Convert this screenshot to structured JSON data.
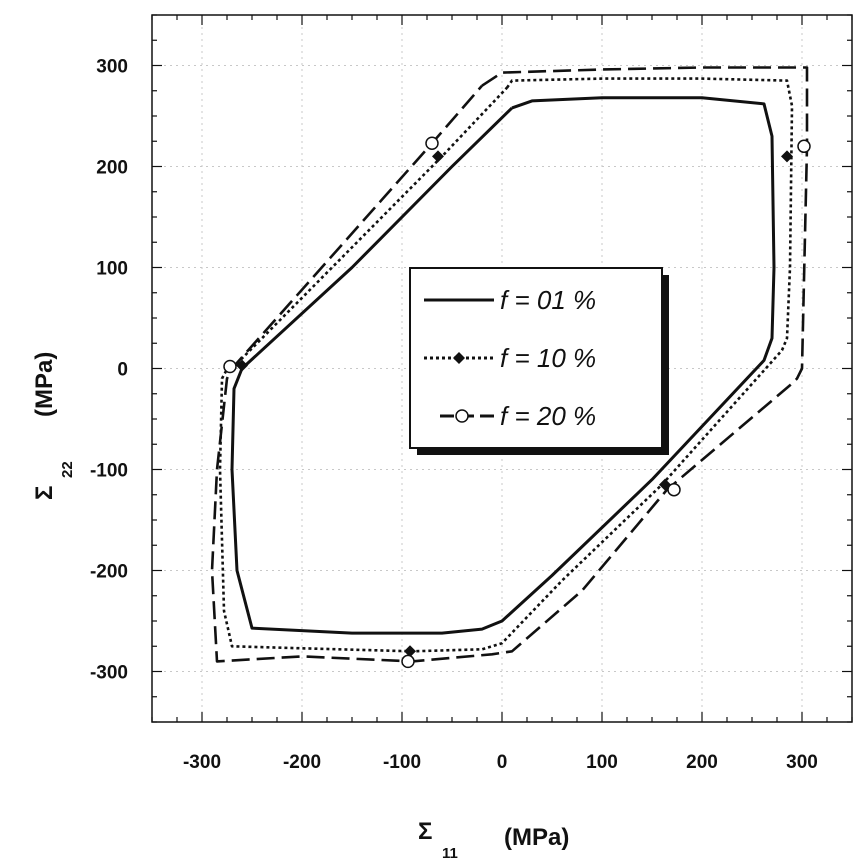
{
  "chart_data": {
    "type": "line",
    "xlabel": {
      "symbol": "Σ",
      "subscript": "11",
      "unit": "(MPa)"
    },
    "ylabel": {
      "symbol": "Σ",
      "subscript": "22",
      "unit": "(MPa)"
    },
    "xlim": [
      -350,
      350
    ],
    "ylim": [
      -350,
      350
    ],
    "xticks": [
      -300,
      -200,
      -100,
      0,
      100,
      200,
      300
    ],
    "yticks": [
      -300,
      -200,
      -100,
      0,
      100,
      200,
      300
    ],
    "grid": true,
    "legend_position": "center-right",
    "series": [
      {
        "name": "f = 01 %",
        "style": "solid",
        "marker": "none",
        "color": "#111111",
        "x": [
          10,
          30,
          100,
          200,
          262,
          270,
          272,
          270,
          262,
          150,
          50,
          0,
          -20,
          -60,
          -150,
          -250,
          -265,
          -270,
          -268,
          -260,
          -150,
          -50,
          10
        ],
        "y": [
          258,
          265,
          268,
          268,
          262,
          230,
          100,
          30,
          8,
          -110,
          -205,
          -250,
          -258,
          -262,
          -262,
          -257,
          -200,
          -100,
          -20,
          0,
          100,
          200,
          258
        ]
      },
      {
        "name": "f = 10 %",
        "style": "dotted",
        "marker": "diamond",
        "color": "#111111",
        "x": [
          5,
          10,
          100,
          200,
          285,
          290,
          288,
          285,
          280,
          160,
          60,
          0,
          -20,
          -90,
          -200,
          -270,
          -278,
          -282,
          -280,
          -272,
          -265,
          -60,
          5
        ],
        "y": [
          278,
          285,
          287,
          287,
          285,
          260,
          100,
          30,
          18,
          -115,
          -210,
          -272,
          -278,
          -280,
          -277,
          -275,
          -240,
          -100,
          -10,
          5,
          5,
          210,
          278
        ],
        "markers": [
          [
            -64,
            210
          ],
          [
            285,
            210
          ],
          [
            -260,
            3
          ],
          [
            163,
            -115
          ],
          [
            -92,
            -280
          ]
        ]
      },
      {
        "name": "f = 20 %",
        "style": "dashed",
        "marker": "circle",
        "color": "#111111",
        "x": [
          -20,
          0,
          100,
          200,
          305,
          305,
          300,
          295,
          290,
          165,
          80,
          10,
          -10,
          -90,
          -200,
          -285,
          -290,
          -285,
          -275,
          -270,
          -70,
          -20
        ],
        "y": [
          280,
          293,
          296,
          298,
          298,
          220,
          0,
          -10,
          -15,
          -120,
          -220,
          -280,
          -283,
          -290,
          -285,
          -290,
          -200,
          -100,
          -10,
          0,
          223,
          280
        ],
        "markers": [
          [
            -70,
            223
          ],
          [
            302,
            220
          ],
          [
            -272,
            2
          ],
          [
            172,
            -120
          ],
          [
            -94,
            -290
          ]
        ]
      }
    ]
  }
}
